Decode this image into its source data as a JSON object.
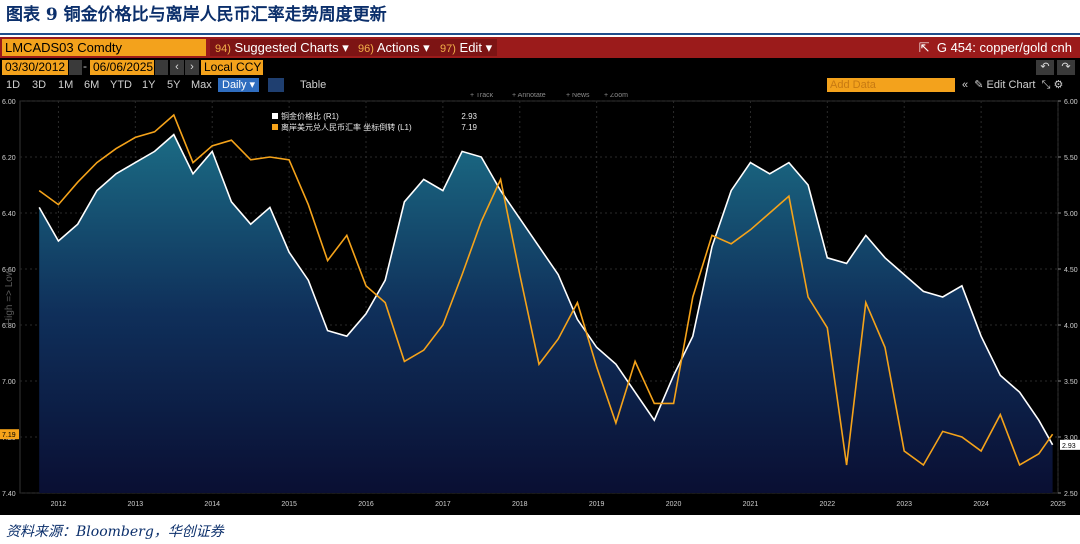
{
  "figure": {
    "title": "图表 9 铜金价格比与离岸人民币汇率走势周度更新",
    "source": "资料来源：Bloomberg，华创证券"
  },
  "terminal": {
    "ticker": "LMCADS03 Comdty",
    "menu": [
      {
        "num": "94)",
        "label": "Suggested Charts"
      },
      {
        "num": "96)",
        "label": "Actions"
      },
      {
        "num": "97)",
        "label": "Edit"
      }
    ],
    "chart_name": "G 454: copper/gold cnh",
    "start_date": "03/30/2012",
    "end_date": "06/06/2025",
    "currency": "Local CCY",
    "periods": [
      "1D",
      "3D",
      "1M",
      "6M",
      "YTD",
      "1Y",
      "5Y",
      "Max"
    ],
    "frequency": "Daily",
    "table_label": "Table",
    "add_data_placeholder": "Add Data",
    "edit_chart": "Edit Chart",
    "tools": [
      "Track",
      "Annotate",
      "News",
      "Zoom"
    ],
    "colors": {
      "header_red": "#9b1b1b",
      "accent_orange": "#f3a21c",
      "series_white": "#ffffff",
      "series_orange": "#f5a31a"
    }
  },
  "chart_data": {
    "type": "line",
    "left_axis": {
      "ticks": [
        "6.00",
        "6.20",
        "6.40",
        "6.60",
        "6.80",
        "7.00",
        "7.20",
        "7.40"
      ],
      "range": [
        6.0,
        7.4
      ],
      "inverted": true,
      "label": "High => Low"
    },
    "right_axis": {
      "ticks": [
        "2.50",
        "3.00",
        "3.50",
        "4.00",
        "4.50",
        "5.00",
        "5.50",
        "6.00"
      ],
      "range": [
        2.5,
        6.0
      ]
    },
    "x_ticks": [
      "2012",
      "2013",
      "2014",
      "2015",
      "2016",
      "2017",
      "2018",
      "2019",
      "2020",
      "2021",
      "2022",
      "2023",
      "2024",
      "2025"
    ],
    "series": [
      {
        "name": "铜金价格比 (R1)",
        "last": "2.93",
        "color": "#ffffff",
        "x": [
          2012.25,
          2012.5,
          2012.75,
          2013.0,
          2013.25,
          2013.5,
          2013.75,
          2014.0,
          2014.25,
          2014.5,
          2014.75,
          2015.0,
          2015.25,
          2015.5,
          2015.75,
          2016.0,
          2016.25,
          2016.5,
          2016.75,
          2017.0,
          2017.25,
          2017.5,
          2017.75,
          2018.0,
          2018.25,
          2018.5,
          2018.75,
          2019.0,
          2019.25,
          2019.5,
          2019.75,
          2020.0,
          2020.25,
          2020.5,
          2020.75,
          2021.0,
          2021.25,
          2021.5,
          2021.75,
          2022.0,
          2022.25,
          2022.5,
          2022.75,
          2023.0,
          2023.25,
          2023.5,
          2023.75,
          2024.0,
          2024.25,
          2024.5,
          2024.75,
          2025.0,
          2025.25,
          2025.43
        ],
        "values": [
          5.05,
          4.75,
          4.9,
          5.2,
          5.35,
          5.45,
          5.55,
          5.7,
          5.35,
          5.55,
          5.1,
          4.9,
          5.05,
          4.65,
          4.4,
          3.95,
          3.9,
          4.1,
          4.4,
          5.1,
          5.3,
          5.2,
          5.55,
          5.5,
          5.2,
          4.95,
          4.7,
          4.45,
          4.05,
          3.8,
          3.65,
          3.4,
          3.15,
          3.55,
          3.9,
          4.7,
          5.2,
          5.45,
          5.35,
          5.45,
          5.25,
          4.6,
          4.55,
          4.8,
          4.6,
          4.45,
          4.3,
          4.25,
          4.35,
          3.9,
          3.55,
          3.4,
          3.15,
          2.93
        ]
      },
      {
        "name": "离岸美元兑人民币汇率 坐标倒转 (L1)",
        "last": "7.19",
        "color": "#f5a31a",
        "x": [
          2012.25,
          2012.5,
          2012.75,
          2013.0,
          2013.25,
          2013.5,
          2013.75,
          2014.0,
          2014.25,
          2014.5,
          2014.75,
          2015.0,
          2015.25,
          2015.5,
          2015.75,
          2016.0,
          2016.25,
          2016.5,
          2016.75,
          2017.0,
          2017.25,
          2017.5,
          2017.75,
          2018.0,
          2018.25,
          2018.5,
          2018.75,
          2019.0,
          2019.25,
          2019.5,
          2019.75,
          2020.0,
          2020.25,
          2020.5,
          2020.75,
          2021.0,
          2021.25,
          2021.5,
          2021.75,
          2022.0,
          2022.25,
          2022.5,
          2022.75,
          2023.0,
          2023.25,
          2023.5,
          2023.75,
          2024.0,
          2024.25,
          2024.5,
          2024.75,
          2025.0,
          2025.25,
          2025.43
        ],
        "values": [
          6.32,
          6.37,
          6.29,
          6.22,
          6.17,
          6.13,
          6.11,
          6.05,
          6.22,
          6.16,
          6.14,
          6.21,
          6.2,
          6.21,
          6.37,
          6.57,
          6.48,
          6.66,
          6.72,
          6.93,
          6.89,
          6.8,
          6.62,
          6.43,
          6.28,
          6.62,
          6.94,
          6.85,
          6.72,
          6.95,
          7.15,
          6.93,
          7.08,
          7.08,
          6.7,
          6.48,
          6.51,
          6.46,
          6.4,
          6.34,
          6.7,
          6.81,
          7.3,
          6.72,
          6.88,
          7.25,
          7.3,
          7.18,
          7.2,
          7.25,
          7.12,
          7.3,
          7.26,
          7.19
        ]
      }
    ]
  }
}
